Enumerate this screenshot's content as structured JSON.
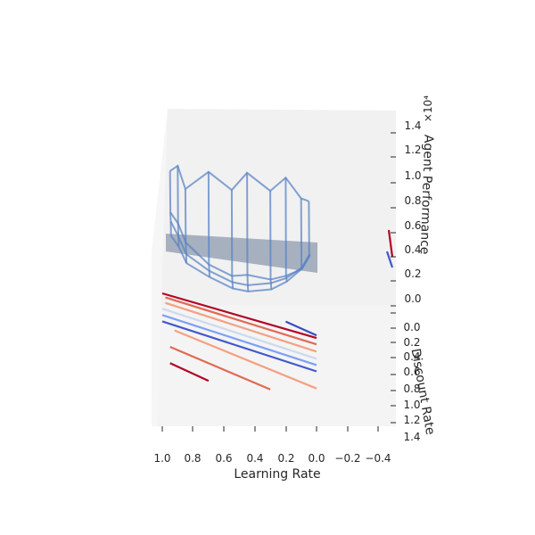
{
  "chart_data": {
    "type": "surface3d",
    "title": "",
    "xlabel": "Learning Rate",
    "ylabel": "Discount Rate",
    "zlabel": "Agent Performance",
    "z_multiplier_label": "×10⁴",
    "x_ticks": [
      "1.0",
      "0.8",
      "0.6",
      "0.4",
      "0.2",
      "0.0",
      "−0.2",
      "−0.4"
    ],
    "y_ticks": [
      "0.0",
      "0.2",
      "0.4",
      "0.6",
      "0.8",
      "1.0",
      "1.2",
      "1.4"
    ],
    "z_ticks": [
      "0.0",
      "0.2",
      "0.4",
      "0.6",
      "0.8",
      "1.0",
      "1.2",
      "1.4"
    ],
    "xlim": [
      -0.5,
      1.0
    ],
    "ylim": [
      0.0,
      1.4
    ],
    "zlim": [
      0.0,
      1.5
    ],
    "grid": false,
    "colormap": "coolwarm",
    "wireframe_color": "#5b84c4",
    "surface_color": "#6a7a96",
    "series": [
      {
        "kind": "wireframe",
        "points": [
          [
            [
              0.95,
              0.0,
              0.98
            ],
            [
              0.9,
              0.0,
              1.02
            ],
            [
              0.85,
              0.0,
              0.85
            ],
            [
              0.7,
              0.0,
              0.98
            ],
            [
              0.55,
              0.0,
              0.85
            ],
            [
              0.45,
              0.0,
              0.98
            ],
            [
              0.3,
              0.0,
              0.85
            ],
            [
              0.2,
              0.0,
              0.95
            ],
            [
              0.1,
              0.0,
              0.8
            ],
            [
              0.05,
              0.0,
              0.78
            ]
          ],
          [
            [
              0.95,
              0.2,
              0.7
            ],
            [
              0.9,
              0.2,
              0.62
            ],
            [
              0.85,
              0.2,
              0.48
            ],
            [
              0.7,
              0.2,
              0.32
            ],
            [
              0.55,
              0.2,
              0.24
            ],
            [
              0.45,
              0.2,
              0.25
            ],
            [
              0.3,
              0.2,
              0.22
            ],
            [
              0.2,
              0.2,
              0.25
            ],
            [
              0.1,
              0.2,
              0.3
            ],
            [
              0.05,
              0.2,
              0.4
            ]
          ],
          [
            [
              0.95,
              0.4,
              0.66
            ],
            [
              0.9,
              0.4,
              0.55
            ],
            [
              0.85,
              0.4,
              0.42
            ],
            [
              0.7,
              0.4,
              0.3
            ],
            [
              0.55,
              0.4,
              0.22
            ],
            [
              0.45,
              0.4,
              0.2
            ],
            [
              0.3,
              0.4,
              0.22
            ],
            [
              0.2,
              0.4,
              0.26
            ],
            [
              0.1,
              0.4,
              0.34
            ],
            [
              0.05,
              0.4,
              0.44
            ]
          ],
          [
            [
              0.95,
              0.6,
              0.58
            ],
            [
              0.9,
              0.6,
              0.5
            ],
            [
              0.85,
              0.6,
              0.38
            ],
            [
              0.7,
              0.6,
              0.28
            ],
            [
              0.55,
              0.6,
              0.2
            ],
            [
              0.45,
              0.6,
              0.18
            ],
            [
              0.3,
              0.6,
              0.2
            ],
            [
              0.2,
              0.6,
              0.26
            ],
            [
              0.1,
              0.6,
              0.36
            ],
            [
              0.05,
              0.6,
              0.46
            ]
          ]
        ]
      },
      {
        "kind": "line",
        "color": "#b40426",
        "points": [
          [
            1.0,
            0.02,
            0
          ],
          [
            0.0,
            0.25,
            0
          ]
        ]
      },
      {
        "kind": "line",
        "color": "#e26952",
        "points": [
          [
            0.98,
            0.06,
            0
          ],
          [
            0.0,
            0.32,
            0
          ]
        ]
      },
      {
        "kind": "line",
        "color": "#f5a081",
        "points": [
          [
            0.98,
            0.12,
            0
          ],
          [
            0.0,
            0.4,
            0
          ]
        ]
      },
      {
        "kind": "line",
        "color": "#cdd9ec",
        "points": [
          [
            1.0,
            0.19,
            0
          ],
          [
            0.0,
            0.48,
            0
          ]
        ]
      },
      {
        "kind": "line",
        "color": "#7b9ff9",
        "points": [
          [
            1.0,
            0.26,
            0
          ],
          [
            0.0,
            0.55,
            0
          ]
        ]
      },
      {
        "kind": "line",
        "color": "#4358cb",
        "points": [
          [
            1.0,
            0.33,
            0
          ],
          [
            0.0,
            0.62,
            0
          ]
        ]
      },
      {
        "kind": "line",
        "color": "#f5a081",
        "points": [
          [
            0.92,
            0.41,
            0
          ],
          [
            0.0,
            0.81,
            0
          ]
        ]
      },
      {
        "kind": "line",
        "color": "#e26952",
        "points": [
          [
            0.95,
            0.6,
            0
          ],
          [
            0.3,
            0.9,
            0
          ]
        ]
      },
      {
        "kind": "line",
        "color": "#b40426",
        "points": [
          [
            0.95,
            0.78,
            0
          ],
          [
            0.7,
            0.91,
            0
          ]
        ]
      },
      {
        "kind": "line",
        "color": "#3b4cc0",
        "points": [
          [
            0.2,
            0.12,
            0
          ],
          [
            0.0,
            0.22,
            0
          ]
        ]
      }
    ]
  }
}
